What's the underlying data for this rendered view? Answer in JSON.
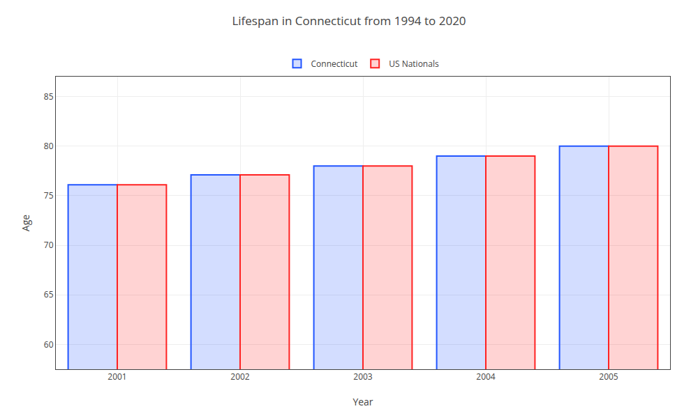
{
  "chart_data": {
    "type": "bar",
    "title": "Lifespan in Connecticut from 1994 to 2020",
    "xlabel": "Year",
    "ylabel": "Age",
    "categories": [
      "2001",
      "2002",
      "2003",
      "2004",
      "2005"
    ],
    "series": [
      {
        "name": "Connecticut",
        "color": "#2255FF",
        "values": [
          76.1,
          77.1,
          78.0,
          79.0,
          80.0
        ]
      },
      {
        "name": "US Nationals",
        "color": "#FF2222",
        "values": [
          76.1,
          77.1,
          78.0,
          79.0,
          80.0
        ]
      }
    ],
    "ylim": [
      57.5,
      87
    ],
    "yticks": [
      60,
      65,
      70,
      75,
      80,
      85
    ],
    "grid": true,
    "legend": "upper center"
  }
}
